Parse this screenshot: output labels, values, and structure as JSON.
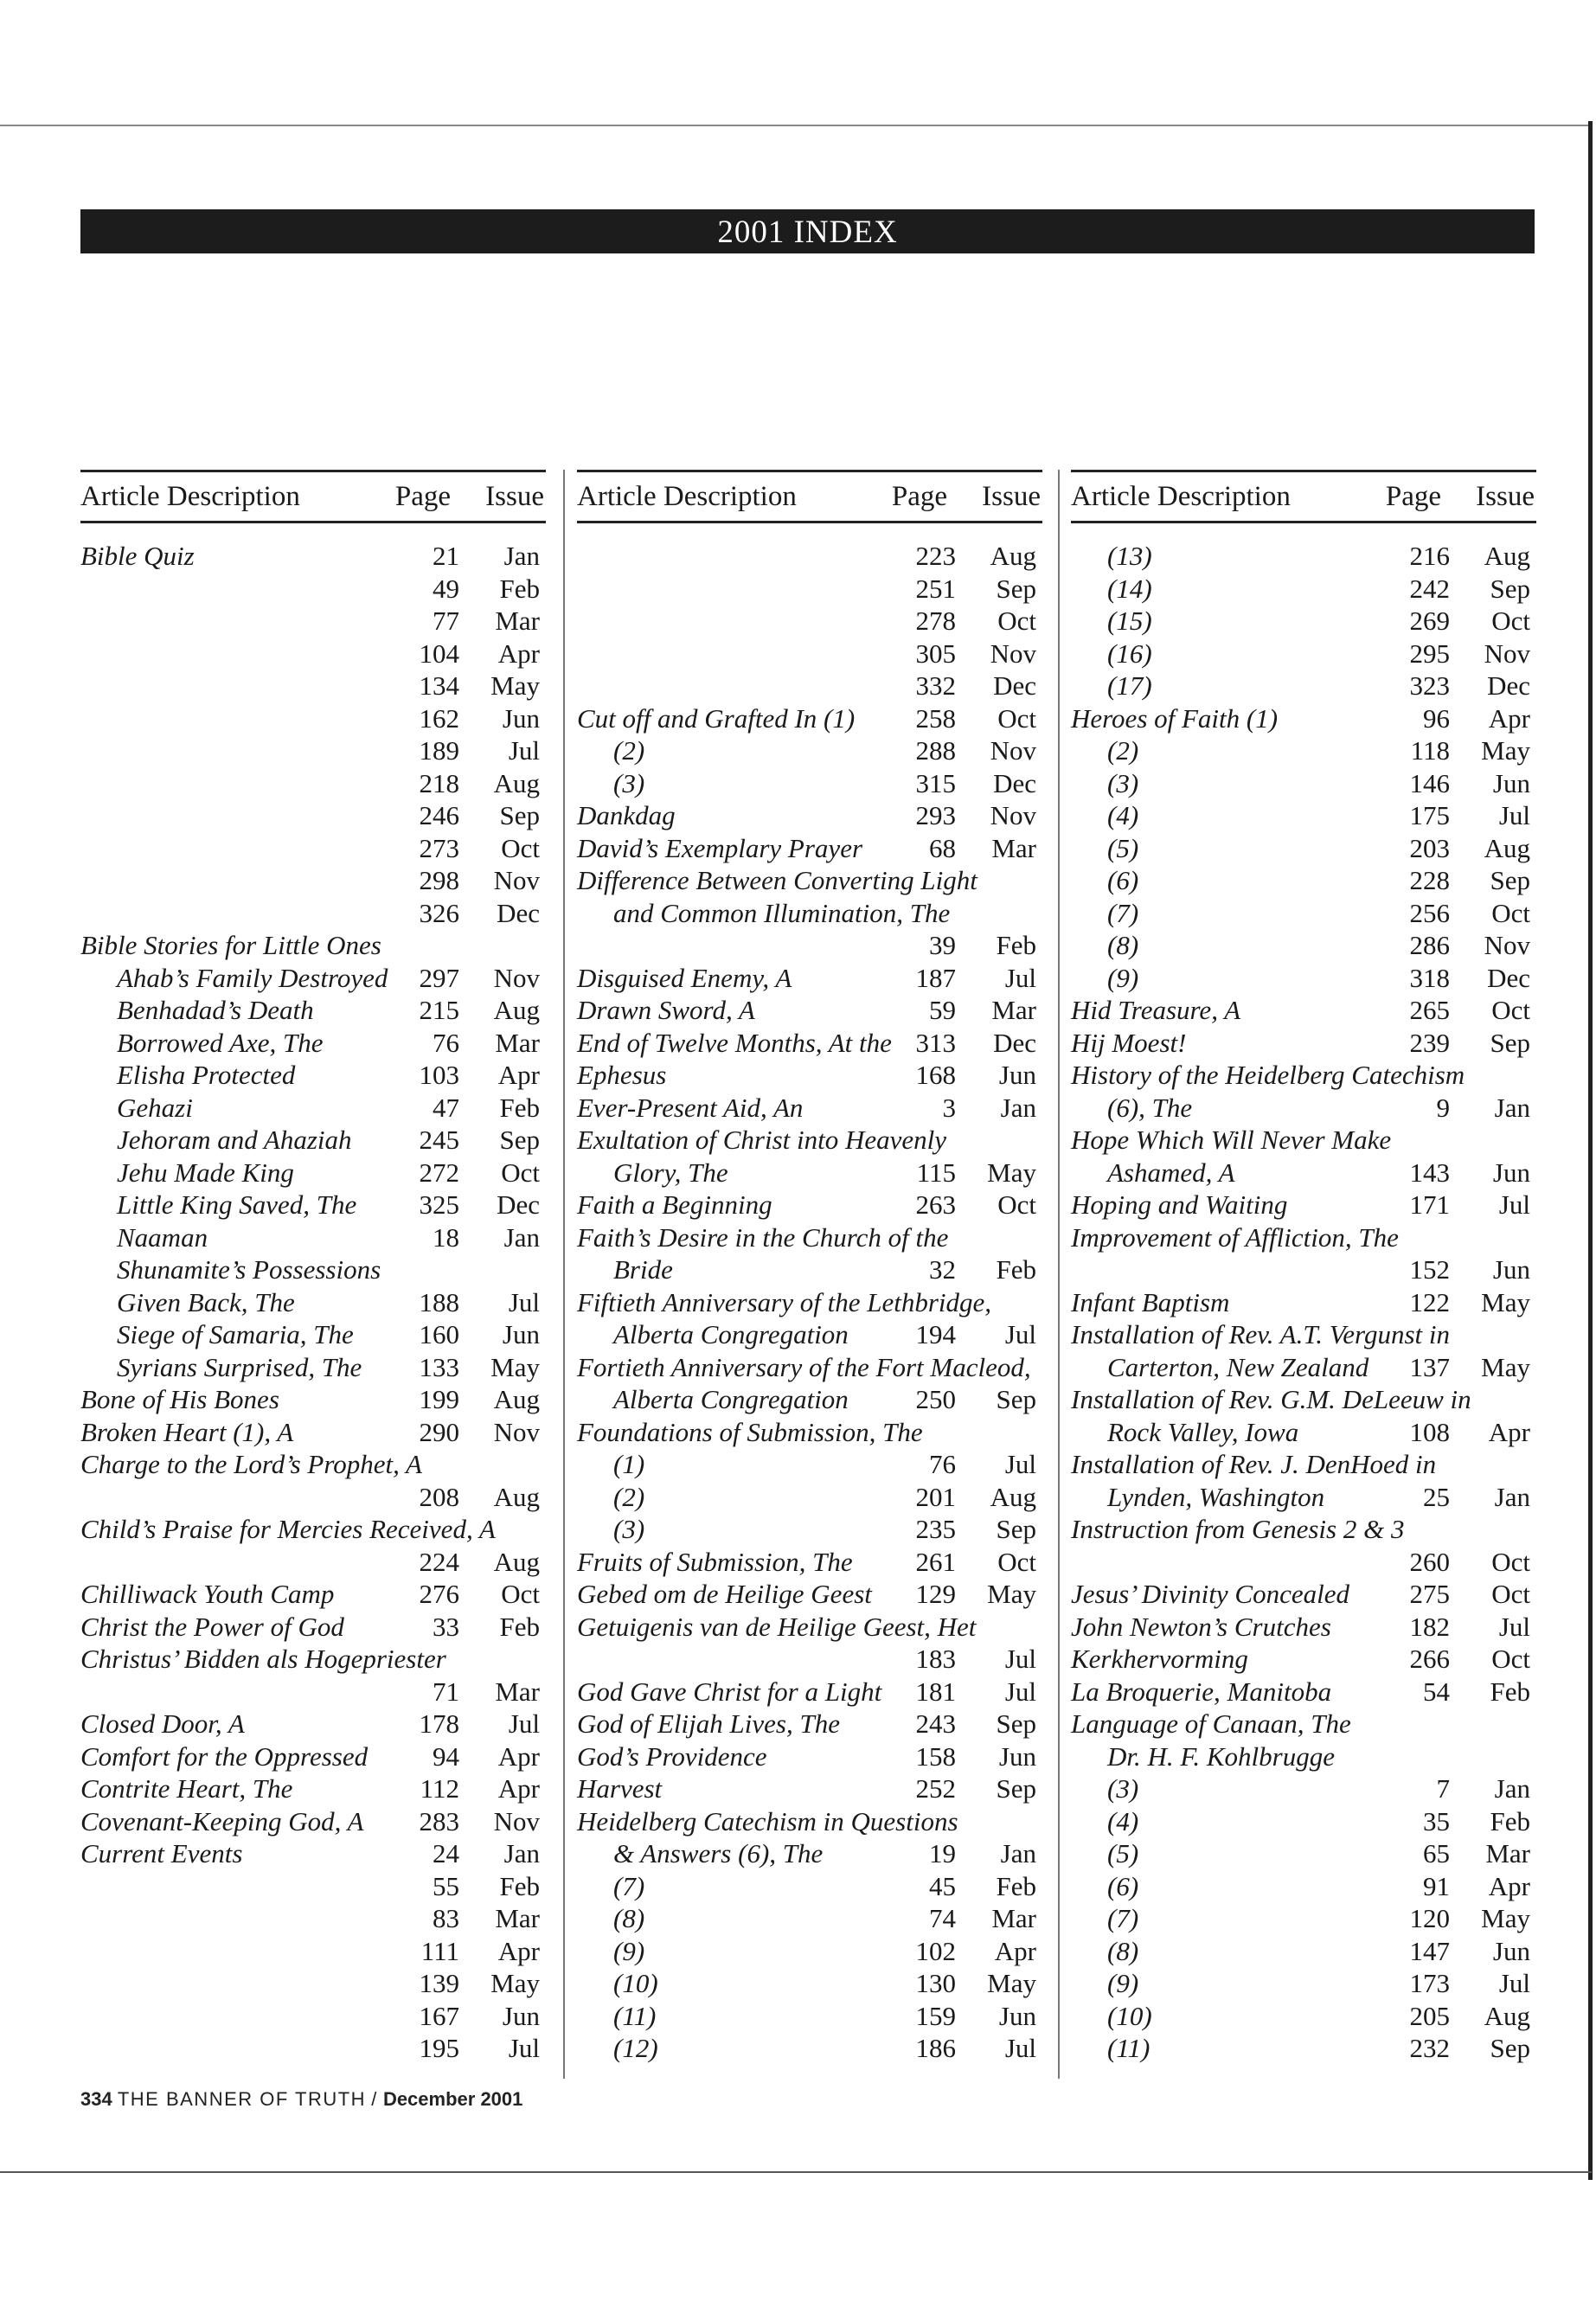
{
  "title": "2001 INDEX",
  "headers": {
    "description": "Article Description",
    "page": "Page",
    "issue": "Issue"
  },
  "columns": [
    {
      "rows": [
        [
          "Bible Quiz",
          "21",
          "Jan",
          0
        ],
        [
          "",
          "49",
          "Feb",
          0
        ],
        [
          "",
          "77",
          "Mar",
          0
        ],
        [
          "",
          "104",
          "Apr",
          0
        ],
        [
          "",
          "134",
          "May",
          0
        ],
        [
          "",
          "162",
          "Jun",
          0
        ],
        [
          "",
          "189",
          "Jul",
          0
        ],
        [
          "",
          "218",
          "Aug",
          0
        ],
        [
          "",
          "246",
          "Sep",
          0
        ],
        [
          "",
          "273",
          "Oct",
          0
        ],
        [
          "",
          "298",
          "Nov",
          0
        ],
        [
          "",
          "326",
          "Dec",
          0
        ],
        [
          "Bible Stories for Little Ones",
          "",
          "",
          0
        ],
        [
          "Ahab’s Family Destroyed",
          "297",
          "Nov",
          1
        ],
        [
          "Benhadad’s Death",
          "215",
          "Aug",
          1
        ],
        [
          "Borrowed Axe, The",
          "76",
          "Mar",
          1
        ],
        [
          "Elisha Protected",
          "103",
          "Apr",
          1
        ],
        [
          "Gehazi",
          "47",
          "Feb",
          1
        ],
        [
          "Jehoram and Ahaziah",
          "245",
          "Sep",
          1
        ],
        [
          "Jehu Made King",
          "272",
          "Oct",
          1
        ],
        [
          "Little King Saved, The",
          "325",
          "Dec",
          1
        ],
        [
          "Naaman",
          "18",
          "Jan",
          1
        ],
        [
          "Shunamite’s Possessions",
          "",
          "",
          1
        ],
        [
          "Given Back, The",
          "188",
          "Jul",
          1
        ],
        [
          "Siege of Samaria, The",
          "160",
          "Jun",
          1
        ],
        [
          "Syrians Surprised, The",
          "133",
          "May",
          1
        ],
        [
          "Bone of His Bones",
          "199",
          "Aug",
          0
        ],
        [
          "Broken Heart (1), A",
          "290",
          "Nov",
          0
        ],
        [
          "Charge to the Lord’s Prophet, A",
          "",
          "",
          0
        ],
        [
          "",
          "208",
          "Aug",
          0
        ],
        [
          "Child’s Praise for Mercies Received, A",
          "",
          "",
          0
        ],
        [
          "",
          "224",
          "Aug",
          0
        ],
        [
          "Chilliwack Youth Camp",
          "276",
          "Oct",
          0
        ],
        [
          "Christ the Power of God",
          "33",
          "Feb",
          0
        ],
        [
          "Christus’ Bidden als Hogepriester",
          "",
          "",
          0
        ],
        [
          "",
          "71",
          "Mar",
          0
        ],
        [
          "Closed Door, A",
          "178",
          "Jul",
          0
        ],
        [
          "Comfort for the Oppressed",
          "94",
          "Apr",
          0
        ],
        [
          "Contrite Heart, The",
          "112",
          "Apr",
          0
        ],
        [
          "Covenant-Keeping God, A",
          "283",
          "Nov",
          0
        ],
        [
          "Current Events",
          "24",
          "Jan",
          0
        ],
        [
          "",
          "55",
          "Feb",
          0
        ],
        [
          "",
          "83",
          "Mar",
          0
        ],
        [
          "",
          "111",
          "Apr",
          0
        ],
        [
          "",
          "139",
          "May",
          0
        ],
        [
          "",
          "167",
          "Jun",
          0
        ],
        [
          "",
          "195",
          "Jul",
          0
        ]
      ]
    },
    {
      "rows": [
        [
          "",
          "223",
          "Aug",
          0
        ],
        [
          "",
          "251",
          "Sep",
          0
        ],
        [
          "",
          "278",
          "Oct",
          0
        ],
        [
          "",
          "305",
          "Nov",
          0
        ],
        [
          "",
          "332",
          "Dec",
          0
        ],
        [
          "Cut off and Grafted In (1)",
          "258",
          "Oct",
          0
        ],
        [
          "(2)",
          "288",
          "Nov",
          1
        ],
        [
          "(3)",
          "315",
          "Dec",
          1
        ],
        [
          "Dankdag",
          "293",
          "Nov",
          0
        ],
        [
          "David’s Exemplary Prayer",
          "68",
          "Mar",
          0
        ],
        [
          "Difference Between Converting Light",
          "",
          "",
          0
        ],
        [
          "and Common Illumination, The",
          "",
          "",
          1
        ],
        [
          "",
          "39",
          "Feb",
          0
        ],
        [
          "Disguised Enemy, A",
          "187",
          "Jul",
          0
        ],
        [
          "Drawn Sword, A",
          "59",
          "Mar",
          0
        ],
        [
          "End of Twelve Months, At the",
          "313",
          "Dec",
          0
        ],
        [
          "Ephesus",
          "168",
          "Jun",
          0
        ],
        [
          "Ever-Present Aid, An",
          "3",
          "Jan",
          0
        ],
        [
          "Exultation of Christ into Heavenly",
          "",
          "",
          0
        ],
        [
          "Glory, The",
          "115",
          "May",
          1
        ],
        [
          "Faith a Beginning",
          "263",
          "Oct",
          0
        ],
        [
          "Faith’s Desire in the Church of the",
          "",
          "",
          0
        ],
        [
          "Bride",
          "32",
          "Feb",
          1
        ],
        [
          "Fiftieth Anniversary of the Lethbridge,",
          "",
          "",
          0
        ],
        [
          "Alberta Congregation",
          "194",
          "Jul",
          1
        ],
        [
          "Fortieth Anniversary of the Fort Macleod,",
          "",
          "",
          0
        ],
        [
          "Alberta Congregation",
          "250",
          "Sep",
          1
        ],
        [
          "Foundations of Submission, The",
          "",
          "",
          0
        ],
        [
          "(1)",
          "76",
          "Jul",
          1
        ],
        [
          "(2)",
          "201",
          "Aug",
          1
        ],
        [
          "(3)",
          "235",
          "Sep",
          1
        ],
        [
          "Fruits of Submission, The",
          "261",
          "Oct",
          0
        ],
        [
          "Gebed om de Heilige Geest",
          "129",
          "May",
          0
        ],
        [
          "Getuigenis van de Heilige Geest, Het",
          "",
          "",
          0
        ],
        [
          "",
          "183",
          "Jul",
          0
        ],
        [
          "God Gave Christ for a Light",
          "181",
          "Jul",
          0
        ],
        [
          "God of Elijah Lives, The",
          "243",
          "Sep",
          0
        ],
        [
          "God’s Providence",
          "158",
          "Jun",
          0
        ],
        [
          "Harvest",
          "252",
          "Sep",
          0
        ],
        [
          "Heidelberg Catechism in Questions",
          "",
          "",
          0
        ],
        [
          "& Answers (6), The",
          "19",
          "Jan",
          1
        ],
        [
          "(7)",
          "45",
          "Feb",
          1
        ],
        [
          "(8)",
          "74",
          "Mar",
          1
        ],
        [
          "(9)",
          "102",
          "Apr",
          1
        ],
        [
          "(10)",
          "130",
          "May",
          1
        ],
        [
          "(11)",
          "159",
          "Jun",
          1
        ],
        [
          "(12)",
          "186",
          "Jul",
          1
        ]
      ]
    },
    {
      "rows": [
        [
          "(13)",
          "216",
          "Aug",
          1
        ],
        [
          "(14)",
          "242",
          "Sep",
          1
        ],
        [
          "(15)",
          "269",
          "Oct",
          1
        ],
        [
          "(16)",
          "295",
          "Nov",
          1
        ],
        [
          "(17)",
          "323",
          "Dec",
          1
        ],
        [
          "Heroes of Faith (1)",
          "96",
          "Apr",
          0
        ],
        [
          "(2)",
          "118",
          "May",
          1
        ],
        [
          "(3)",
          "146",
          "Jun",
          1
        ],
        [
          "(4)",
          "175",
          "Jul",
          1
        ],
        [
          "(5)",
          "203",
          "Aug",
          1
        ],
        [
          "(6)",
          "228",
          "Sep",
          1
        ],
        [
          "(7)",
          "256",
          "Oct",
          1
        ],
        [
          "(8)",
          "286",
          "Nov",
          1
        ],
        [
          "(9)",
          "318",
          "Dec",
          1
        ],
        [
          "Hid Treasure, A",
          "265",
          "Oct",
          0
        ],
        [
          "Hij Moest!",
          "239",
          "Sep",
          0
        ],
        [
          "History of the Heidelberg Catechism",
          "",
          "",
          0
        ],
        [
          "(6), The",
          "9",
          "Jan",
          1
        ],
        [
          "Hope Which Will Never Make",
          "",
          "",
          0
        ],
        [
          "Ashamed, A",
          "143",
          "Jun",
          1
        ],
        [
          "Hoping and Waiting",
          "171",
          "Jul",
          0
        ],
        [
          "Improvement of Affliction, The",
          "",
          "",
          0
        ],
        [
          "",
          "152",
          "Jun",
          0
        ],
        [
          "Infant Baptism",
          "122",
          "May",
          0
        ],
        [
          "Installation of Rev. A.T. Vergunst in",
          "",
          "",
          0
        ],
        [
          "Carterton, New Zealand",
          "137",
          "May",
          1
        ],
        [
          "Installation of Rev. G.M. DeLeeuw in",
          "",
          "",
          0
        ],
        [
          "Rock Valley, Iowa",
          "108",
          "Apr",
          1
        ],
        [
          "Installation of Rev. J. DenHoed in",
          "",
          "",
          0
        ],
        [
          "Lynden, Washington",
          "25",
          "Jan",
          1
        ],
        [
          "Instruction from Genesis 2 & 3",
          "",
          "",
          0
        ],
        [
          "",
          "260",
          "Oct",
          0
        ],
        [
          "Jesus’ Divinity Concealed",
          "275",
          "Oct",
          0
        ],
        [
          "John Newton’s Crutches",
          "182",
          "Jul",
          0
        ],
        [
          "Kerkhervorming",
          "266",
          "Oct",
          0
        ],
        [
          "La Broquerie, Manitoba",
          "54",
          "Feb",
          0
        ],
        [
          "Language of Canaan, The",
          "",
          "",
          0
        ],
        [
          "Dr. H. F. Kohlbrugge",
          "",
          "",
          1
        ],
        [
          "(3)",
          "7",
          "Jan",
          1
        ],
        [
          "(4)",
          "35",
          "Feb",
          1
        ],
        [
          "(5)",
          "65",
          "Mar",
          1
        ],
        [
          "(6)",
          "91",
          "Apr",
          1
        ],
        [
          "(7)",
          "120",
          "May",
          1
        ],
        [
          "(8)",
          "147",
          "Jun",
          1
        ],
        [
          "(9)",
          "173",
          "Jul",
          1
        ],
        [
          "(10)",
          "205",
          "Aug",
          1
        ],
        [
          "(11)",
          "232",
          "Sep",
          1
        ]
      ]
    }
  ],
  "footer": {
    "page_number": "334",
    "publication": "THE BANNER OF TRUTH",
    "separator": "/",
    "issue_date": "December 2001"
  }
}
